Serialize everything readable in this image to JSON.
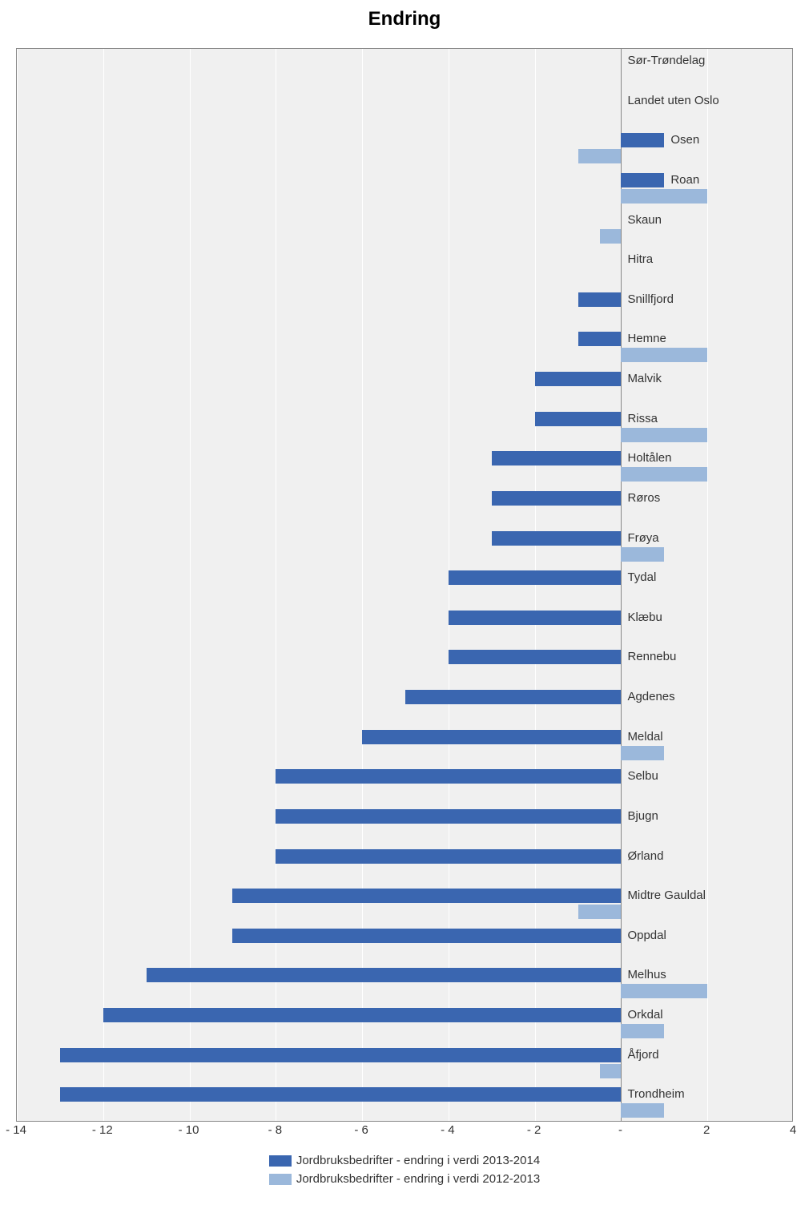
{
  "chart": {
    "type": "bar",
    "orientation": "horizontal",
    "title": "Endring",
    "title_fontsize": 24,
    "title_fontweight": "bold",
    "background_color": "#ffffff",
    "plot_background_color": "#f0f0f0",
    "grid_color": "#ffffff",
    "border_color": "#888888",
    "label_fontsize": 15,
    "label_color": "#333333",
    "xlim": [
      -14,
      4
    ],
    "xtick_step": 2,
    "xticks": [
      -14,
      -12,
      -10,
      -8,
      -6,
      -4,
      -2,
      0,
      2,
      4
    ],
    "xtick_labels": [
      "- 14",
      "- 12",
      "- 10",
      "- 8",
      "- 6",
      "- 4",
      "- 2",
      " - ",
      "2",
      "4"
    ],
    "series": [
      {
        "name": "Jordbruksbedrifter  - endring i verdi 2013-2014",
        "color": "#3a66b0"
      },
      {
        "name": "Jordbruksbedrifter  - endring i verdi 2012-2013",
        "color": "#9bb8db"
      }
    ],
    "categories": [
      {
        "label": "Sør-Trøndelag",
        "v2013_2014": 0,
        "v2012_2013": 0
      },
      {
        "label": "Landet uten Oslo",
        "v2013_2014": 0,
        "v2012_2013": 0
      },
      {
        "label": "Osen",
        "v2013_2014": 1,
        "v2012_2013": -1
      },
      {
        "label": "Roan",
        "v2013_2014": 1,
        "v2012_2013": 2
      },
      {
        "label": "Skaun",
        "v2013_2014": 0,
        "v2012_2013": -0.5
      },
      {
        "label": "Hitra",
        "v2013_2014": 0,
        "v2012_2013": 0
      },
      {
        "label": "Snillfjord",
        "v2013_2014": -1,
        "v2012_2013": 0
      },
      {
        "label": "Hemne",
        "v2013_2014": -1,
        "v2012_2013": 2
      },
      {
        "label": "Malvik",
        "v2013_2014": -2,
        "v2012_2013": 0
      },
      {
        "label": "Rissa",
        "v2013_2014": -2,
        "v2012_2013": 2
      },
      {
        "label": "Holtålen",
        "v2013_2014": -3,
        "v2012_2013": 2
      },
      {
        "label": "Røros",
        "v2013_2014": -3,
        "v2012_2013": 0
      },
      {
        "label": "Frøya",
        "v2013_2014": -3,
        "v2012_2013": 1
      },
      {
        "label": "Tydal",
        "v2013_2014": -4,
        "v2012_2013": 0
      },
      {
        "label": "Klæbu",
        "v2013_2014": -4,
        "v2012_2013": 0
      },
      {
        "label": "Rennebu",
        "v2013_2014": -4,
        "v2012_2013": 0
      },
      {
        "label": "Agdenes",
        "v2013_2014": -5,
        "v2012_2013": 0
      },
      {
        "label": "Meldal",
        "v2013_2014": -6,
        "v2012_2013": 1
      },
      {
        "label": "Selbu",
        "v2013_2014": -8,
        "v2012_2013": 0
      },
      {
        "label": "Bjugn",
        "v2013_2014": -8,
        "v2012_2013": 0
      },
      {
        "label": "Ørland",
        "v2013_2014": -8,
        "v2012_2013": 0
      },
      {
        "label": "Midtre Gauldal",
        "v2013_2014": -9,
        "v2012_2013": -1
      },
      {
        "label": "Oppdal",
        "v2013_2014": -9,
        "v2012_2013": 0
      },
      {
        "label": "Melhus",
        "v2013_2014": -11,
        "v2012_2013": 2
      },
      {
        "label": "Orkdal",
        "v2013_2014": -12,
        "v2012_2013": 1
      },
      {
        "label": "Åfjord",
        "v2013_2014": -13,
        "v2012_2013": -0.5
      },
      {
        "label": "Trondheim",
        "v2013_2014": -13,
        "v2012_2013": 1
      }
    ],
    "legend_position": "bottom"
  }
}
